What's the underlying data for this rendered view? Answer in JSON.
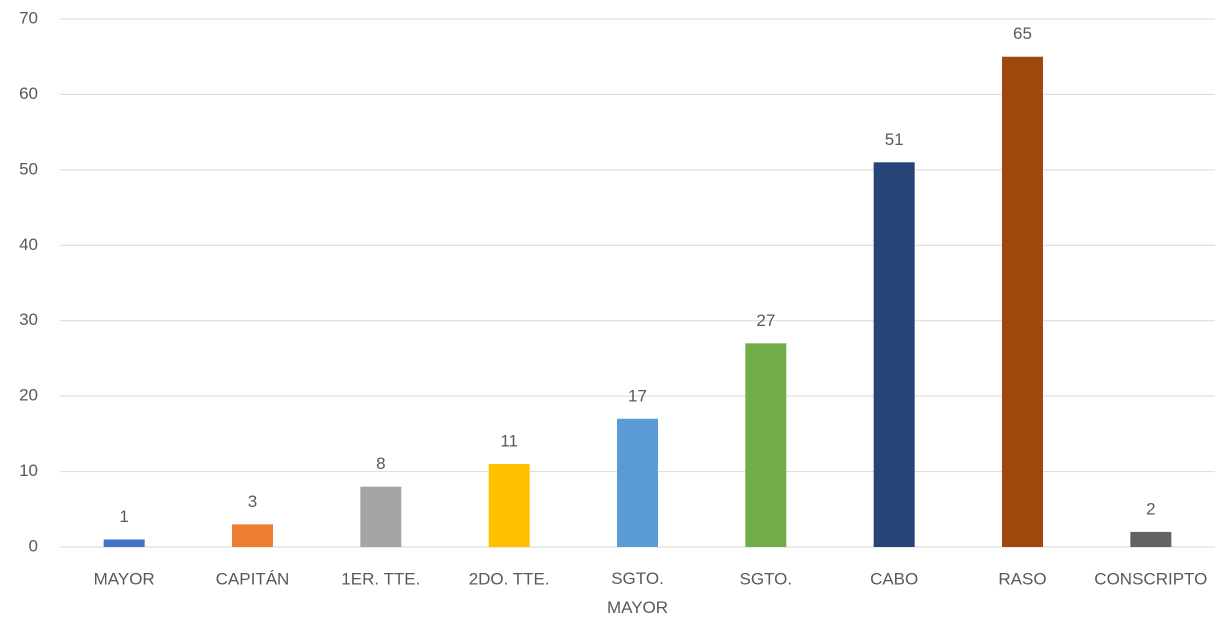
{
  "chart_data": {
    "type": "bar",
    "categories": [
      "MAYOR",
      "CAPITÁN",
      "1ER. TTE.",
      "2DO. TTE.",
      "SGTO. MAYOR",
      "SGTO.",
      "CABO",
      "RASO",
      "CONSCRIPTO"
    ],
    "values": [
      1,
      3,
      8,
      11,
      17,
      27,
      51,
      65,
      2
    ],
    "colors": [
      "#4472c4",
      "#ed7d31",
      "#a5a5a5",
      "#ffc000",
      "#5b9bd5",
      "#70ad47",
      "#264478",
      "#9e480e",
      "#636363"
    ],
    "ylim": [
      0,
      70
    ],
    "yticks": [
      0,
      10,
      20,
      30,
      40,
      50,
      60,
      70
    ],
    "grid": true
  }
}
